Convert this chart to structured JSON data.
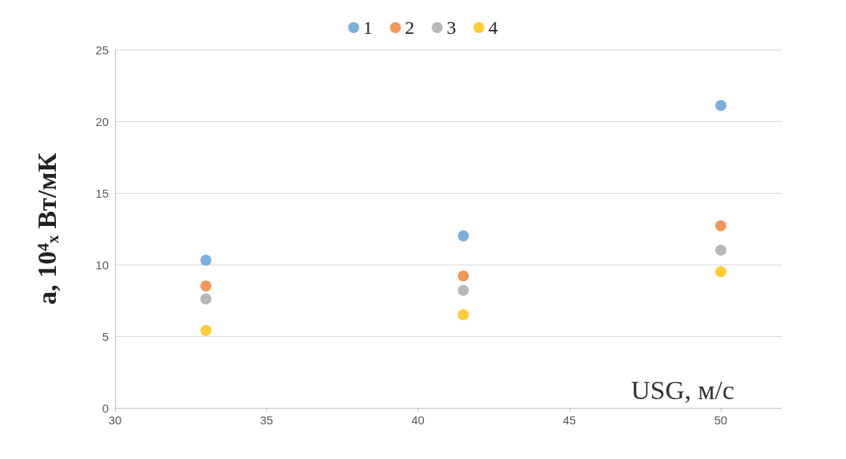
{
  "chart_data": {
    "type": "scatter",
    "xlabel": "USG, м/с",
    "ylabel": "a, 10⁴ₓ Вт/мК",
    "series": [
      {
        "name": "1",
        "color": "#5b9bd5",
        "x": [
          33,
          41.5,
          50
        ],
        "values": [
          10.3,
          12.0,
          21.1
        ]
      },
      {
        "name": "2",
        "color": "#ed7d31",
        "x": [
          33,
          41.5,
          50
        ],
        "values": [
          8.5,
          9.2,
          12.7
        ]
      },
      {
        "name": "3",
        "color": "#a5a5a5",
        "x": [
          33,
          41.5,
          50
        ],
        "values": [
          7.6,
          8.2,
          11.0
        ]
      },
      {
        "name": "4",
        "color": "#ffc000",
        "x": [
          33,
          41.5,
          50
        ],
        "values": [
          5.4,
          6.5,
          9.5
        ]
      }
    ],
    "xlim": [
      30,
      52
    ],
    "xticks": [
      30,
      35,
      40,
      45,
      50
    ],
    "ylim": [
      0,
      25
    ],
    "yticks": [
      0,
      5,
      10,
      15,
      20,
      25
    ],
    "grid": "y",
    "legend": "top",
    "marker": "circle"
  }
}
